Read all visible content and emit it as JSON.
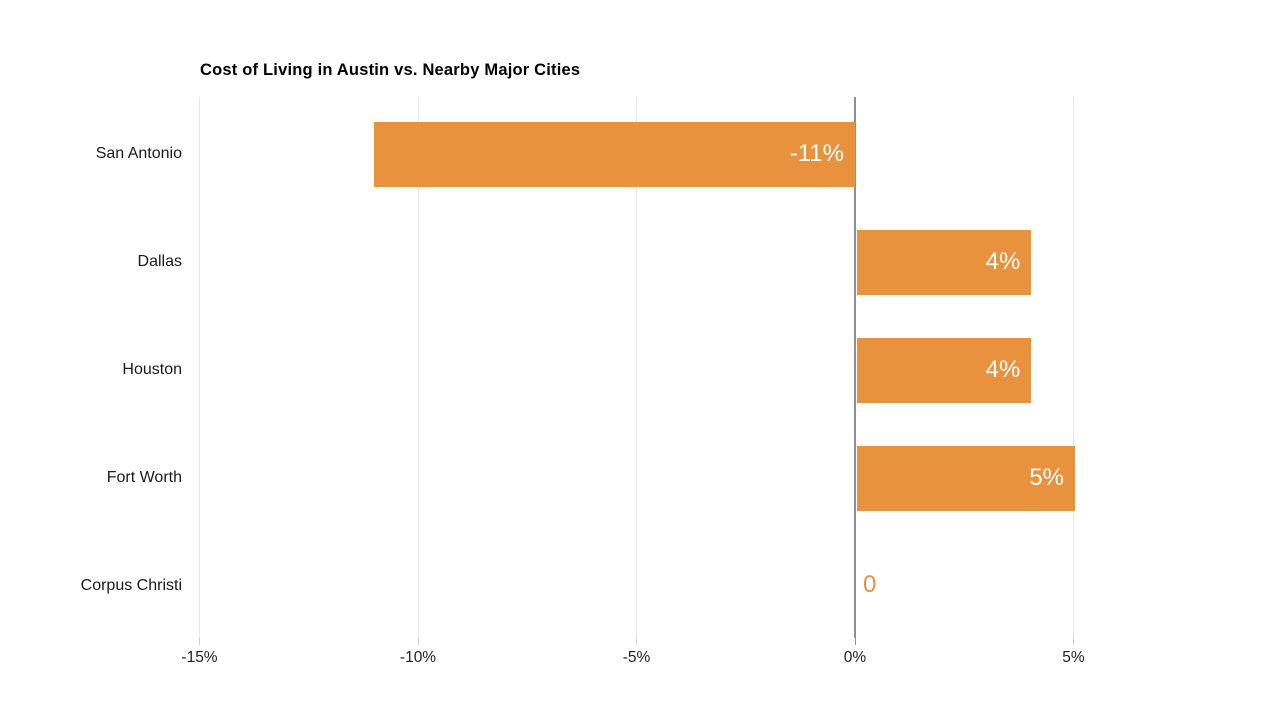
{
  "chart_data": {
    "type": "bar",
    "orientation": "horizontal",
    "title": "Cost of Living in Austin vs. Nearby Major Cities",
    "categories": [
      "San Antonio",
      "Dallas",
      "Houston",
      "Fort Worth",
      "Corpus Christi"
    ],
    "values": [
      -11,
      4,
      4,
      5,
      0
    ],
    "value_labels": [
      "-11%",
      "4%",
      "4%",
      "5%",
      "0"
    ],
    "x_ticks": [
      -15,
      -10,
      -5,
      0,
      5
    ],
    "x_tick_labels": [
      "-15%",
      "-10%",
      "-5%",
      "0%",
      "5%"
    ],
    "xlim": [
      -15,
      9.7
    ],
    "unit": "%",
    "grid": true,
    "legend": "none",
    "bar_color": "#E8923D",
    "value_label_color_inside": "#FFFFFF",
    "value_label_color_outside": "#E8923D",
    "axis_line_color": "#8F8F8F",
    "gridline_color": "#E7E7E7",
    "tick_color": "#CFCFCF",
    "title_color": "#000000",
    "label_color": "#1A1A1A"
  }
}
